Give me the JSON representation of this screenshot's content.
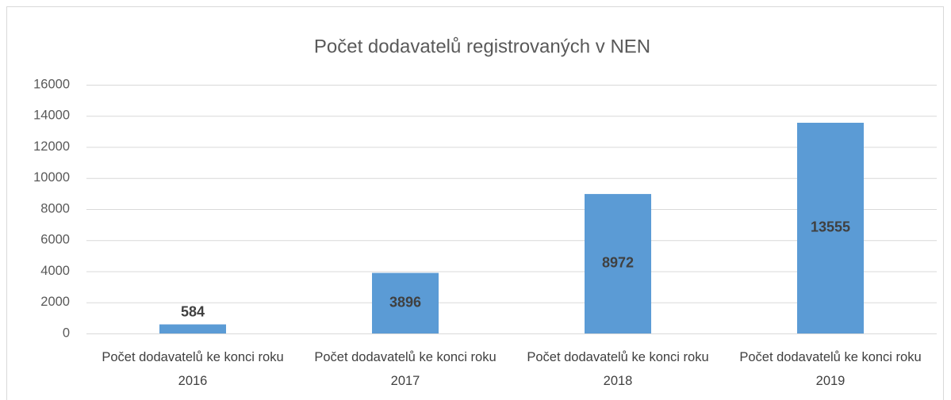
{
  "chart_data": {
    "type": "bar",
    "title": "Počet dodavatelů registrovaných v NEN",
    "categories": [
      "Počet dodavatelů ke konci roku 2016",
      "Počet dodavatelů ke konci roku 2017",
      "Počet dodavatelů ke konci roku 2018",
      "Počet dodavatelů ke konci roku 2019"
    ],
    "values": [
      584,
      3896,
      8972,
      13555
    ],
    "color": "#5b9bd5",
    "ylim": [
      0,
      16000
    ],
    "yticks": [
      0,
      2000,
      4000,
      6000,
      8000,
      10000,
      12000,
      14000,
      16000
    ],
    "grid": true
  }
}
